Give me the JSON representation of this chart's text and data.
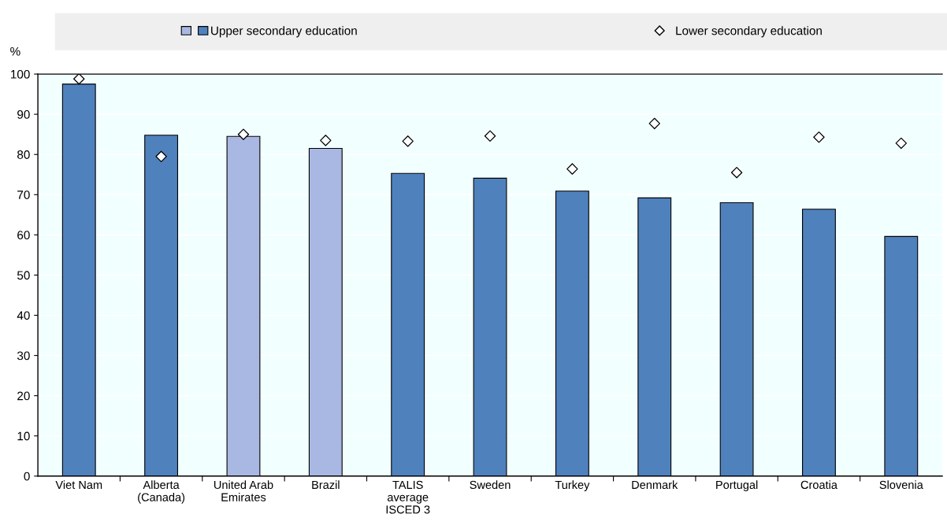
{
  "chart_data": {
    "type": "bar",
    "ylabel": "%",
    "categories": [
      "Viet Nam",
      "Alberta\n(Canada)",
      "United Arab\nEmirates",
      "Brazil",
      "TALIS\naverage\nISCED 3",
      "Sweden",
      "Turkey",
      "Denmark",
      "Portugal",
      "Croatia",
      "Slovenia"
    ],
    "series": [
      {
        "name": "Upper secondary education",
        "colors": [
          "#4f81bd",
          "#4f81bd",
          "#a9b8e2",
          "#a9b8e2",
          "#4f81bd",
          "#4f81bd",
          "#4f81bd",
          "#4f81bd",
          "#4f81bd",
          "#4f81bd",
          "#4f81bd"
        ],
        "values": [
          97.5,
          84.8,
          84.5,
          81.5,
          75.3,
          74.1,
          70.9,
          69.2,
          68.0,
          66.4,
          59.6
        ]
      },
      {
        "name": "Lower secondary education",
        "type": "scatter",
        "color": "#ffffff",
        "marker": "diamond",
        "values": [
          98.8,
          79.5,
          85.0,
          83.5,
          83.3,
          84.6,
          76.4,
          87.7,
          75.5,
          84.3,
          82.8
        ]
      }
    ],
    "ylim": [
      0,
      100
    ],
    "yticks": [
      0,
      10,
      20,
      30,
      40,
      50,
      60,
      70,
      80,
      90,
      100
    ],
    "grid": "y",
    "legend": "top"
  }
}
